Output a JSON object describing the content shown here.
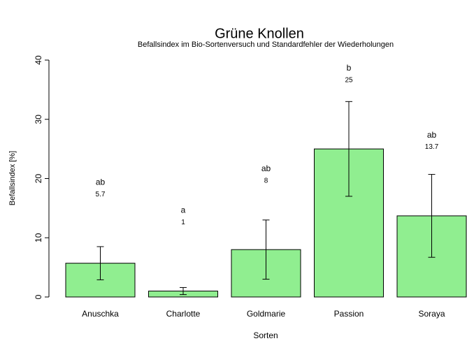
{
  "chart_data": {
    "type": "bar",
    "title": "Grüne Knollen",
    "subtitle": "Befallsindex im Bio-Sortenversuch und Standardfehler der Wiederholungen",
    "xlabel": "Sorten",
    "ylabel": "Befallsindex [%]",
    "categories": [
      "Anuschka",
      "Charlotte",
      "Goldmarie",
      "Passion",
      "Soraya"
    ],
    "values": [
      5.7,
      1,
      8,
      25,
      13.7
    ],
    "errors": [
      2.8,
      0.6,
      5,
      8,
      7
    ],
    "group_letters": [
      "ab",
      "a",
      "ab",
      "b",
      "ab"
    ],
    "color": "#90ee90",
    "ylim": [
      0,
      40
    ],
    "yticks": [
      0,
      10,
      20,
      30,
      40
    ],
    "grid": false
  }
}
